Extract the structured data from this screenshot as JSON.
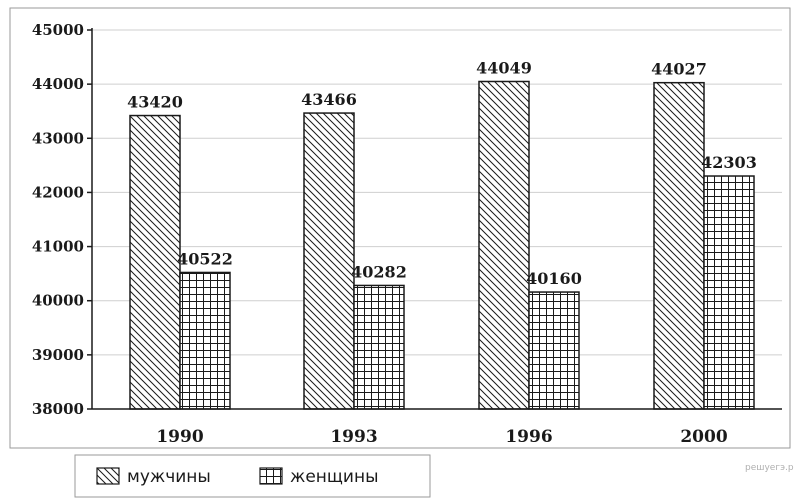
{
  "chart_data": {
    "type": "bar",
    "categories": [
      "1990",
      "1993",
      "1996",
      "2000"
    ],
    "series": [
      {
        "name": "мужчины",
        "values": [
          43420,
          43466,
          44049,
          44027
        ],
        "pattern": "diagonal"
      },
      {
        "name": "женщины",
        "values": [
          40522,
          40282,
          40160,
          42303
        ],
        "pattern": "grid"
      }
    ],
    "data_labels": {
      "мужчины": [
        "43420",
        "43466",
        "44049",
        "44027"
      ],
      "женщины": [
        "40522",
        "40282",
        "40160",
        "42303"
      ]
    },
    "y_ticks": [
      "38000",
      "39000",
      "40000",
      "41000",
      "42000",
      "43000",
      "44000",
      "45000"
    ],
    "ylim": [
      38000,
      45000
    ],
    "grid": true,
    "legend_position": "bottom-left",
    "colors": {
      "bar_stroke": "#1a1a1a",
      "grid": "#cfcfcf",
      "background": "#ffffff"
    }
  },
  "watermark": "решуегэ.р"
}
